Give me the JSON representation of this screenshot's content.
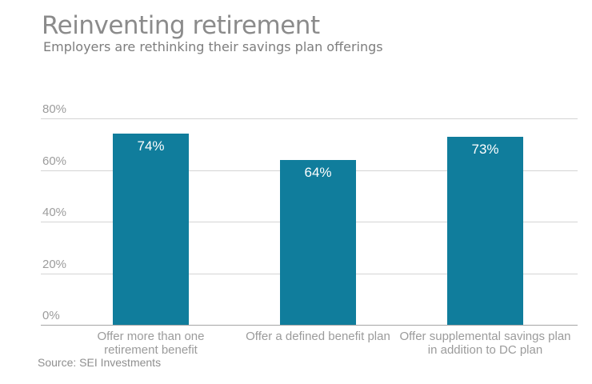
{
  "page": {
    "title": "Reinventing retirement",
    "subtitle": "Employers are rethinking their savings plan offerings",
    "source": "Source: SEI Investments"
  },
  "chart_data": {
    "type": "bar",
    "title": "Reinventing retirement",
    "subtitle": "Employers are rethinking their savings plan offerings",
    "categories": [
      "Offer more than one retirement benefit",
      "Offer a defined benefit plan",
      "Offer supplemental savings plan in addition to DC plan"
    ],
    "values": [
      74,
      64,
      73
    ],
    "value_labels": [
      "74%",
      "64%",
      "73%"
    ],
    "xlabel": "",
    "ylabel": "",
    "ylim": [
      0,
      80
    ],
    "yticks": [
      {
        "value": 0,
        "label": "0%"
      },
      {
        "value": 20,
        "label": "20%"
      },
      {
        "value": 40,
        "label": "40%"
      },
      {
        "value": 60,
        "label": "60%"
      },
      {
        "value": 80,
        "label": "80%"
      }
    ],
    "grid": "horizontal",
    "legend": "none",
    "bar_color": "#107D9C",
    "value_label_color": "#FFFFFF",
    "source": "Source: SEI Investments"
  }
}
